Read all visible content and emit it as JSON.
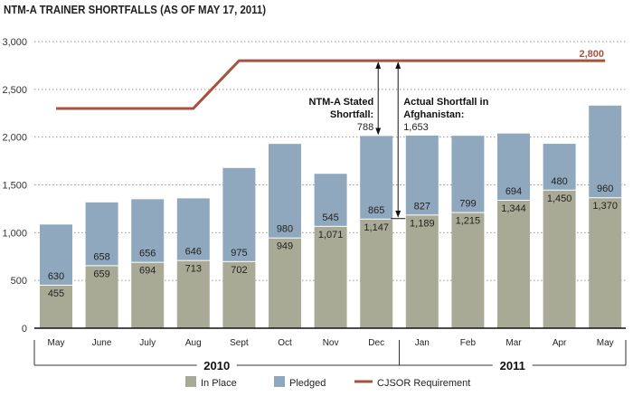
{
  "chart_data": {
    "type": "bar",
    "stacked": true,
    "title": "NTM-A TRAINER SHORTFALLS (AS OF MAY 17, 2011)",
    "categories": [
      "May",
      "June",
      "July",
      "Aug",
      "Sept",
      "Oct",
      "Nov",
      "Dec",
      "Jan",
      "Feb",
      "Mar",
      "Apr",
      "May"
    ],
    "year_groups": [
      {
        "label": "2010",
        "from": 0,
        "to": 7
      },
      {
        "label": "2011",
        "from": 8,
        "to": 12
      }
    ],
    "series": [
      {
        "name": "In Place",
        "color": "#a9aa95",
        "values": [
          455,
          659,
          694,
          713,
          702,
          949,
          1071,
          1147,
          1189,
          1215,
          1344,
          1450,
          1370
        ]
      },
      {
        "name": "Pledged",
        "color": "#8fa8bd",
        "values": [
          630,
          658,
          656,
          646,
          975,
          980,
          545,
          865,
          827,
          799,
          694,
          480,
          960
        ]
      }
    ],
    "line": {
      "name": "CJSOR Requirement",
      "color": "#a4533f",
      "values": [
        2300,
        2300,
        2300,
        2300,
        2800,
        2800,
        2800,
        2800,
        2800,
        2800,
        2800,
        2800,
        2800
      ],
      "end_label": "2,800"
    },
    "yticks": [
      0,
      500,
      1000,
      1500,
      2000,
      2500,
      3000
    ],
    "ytick_labels": [
      "0",
      "500",
      "1,000",
      "1,500",
      "2,000",
      "2,500",
      "3,000"
    ],
    "ylim": [
      0,
      3000
    ],
    "grid": true,
    "legend_placement": "bottom",
    "annotations": [
      {
        "lines": [
          "NTM-A Stated",
          "Shortfall:"
        ],
        "value": "788",
        "category": "Dec",
        "from": 2012,
        "to": 2800
      },
      {
        "lines": [
          "Actual Shortfall in",
          "Afghanistan:"
        ],
        "value": "1,653",
        "category": "Dec",
        "from": 1147,
        "to": 2800
      }
    ]
  }
}
